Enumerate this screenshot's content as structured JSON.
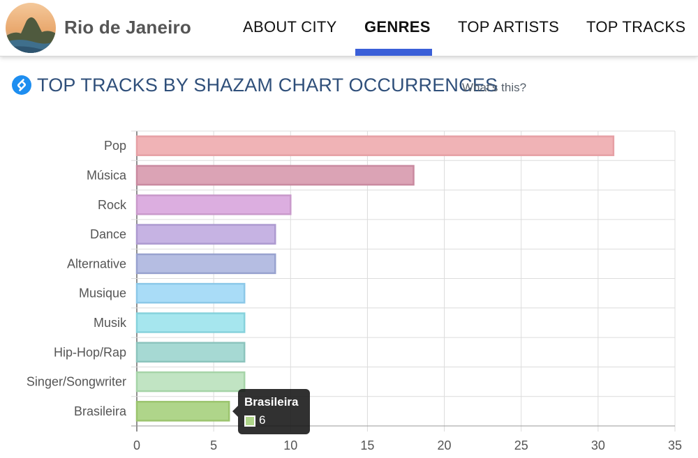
{
  "header": {
    "city_name": "Rio de Janeiro",
    "avatar_icon": "city-photo-avatar",
    "tabs": [
      {
        "label": "ABOUT CITY",
        "active": false
      },
      {
        "label": "GENRES",
        "active": true
      },
      {
        "label": "TOP ARTISTS",
        "active": false
      },
      {
        "label": "TOP TRACKS",
        "active": false
      }
    ],
    "accent_color": "#3a5fd8"
  },
  "section": {
    "icon": "shazam-icon",
    "title": "TOP TRACKS BY SHAZAM CHART OCCURRENCES",
    "help_link": "What's this?"
  },
  "chart_data": {
    "type": "bar",
    "orientation": "horizontal",
    "categories": [
      "Pop",
      "Música",
      "Rock",
      "Dance",
      "Alternative",
      "Musique",
      "Musik",
      "Hip-Hop/Rap",
      "Singer/Songwriter",
      "Brasileira"
    ],
    "values": [
      31,
      18,
      10,
      9,
      9,
      7,
      7,
      7,
      7,
      6
    ],
    "colors": [
      "#f0b3b6",
      "#dba3b5",
      "#dcaee0",
      "#c6b3e3",
      "#b5bde2",
      "#a9dcf7",
      "#a6e6ee",
      "#a6d9d3",
      "#c1e4c3",
      "#afd58a"
    ],
    "border_colors": [
      "#e6a0a5",
      "#c98aa0",
      "#c99acb",
      "#ad9ad0",
      "#98a2cf",
      "#8cc8e8",
      "#86d2dc",
      "#8cc4bd",
      "#a6d4a8",
      "#9bc46e"
    ],
    "xlim": [
      0,
      35
    ],
    "xticks": [
      0,
      5,
      10,
      15,
      20,
      25,
      30,
      35
    ],
    "grid": true,
    "tooltip": {
      "category": "Brasileira",
      "value": "6",
      "color": "#afd58a"
    }
  }
}
